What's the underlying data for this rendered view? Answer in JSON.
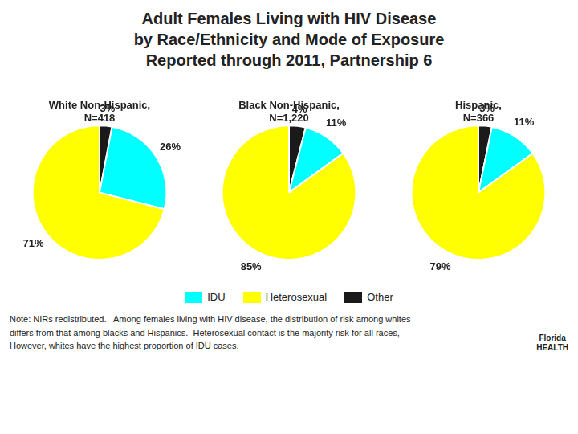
{
  "title": "Adult Females Living with HIV Disease\nby Race/Ethnicity and Mode of Exposure\nReported through 2011, Partnership 6",
  "annotations": [
    "Note: NIRs redistributed.   Among females living with HIV disease, the distribution of risk among whites\ndiffers from that among blacks and Hispanics.  Heterosexual contact is the majority risk for all races,\nHowever, whites have the highest proportion of IDU cases.",
    "Florida\nHEALTH"
  ],
  "legend_labels": [
    "IDU",
    "Heterosexual",
    "Other"
  ],
  "chart_data": [
    {
      "type": "pie",
      "subtitle": "White Non-Hispanic,\nN=418",
      "categories": [
        "Other",
        "IDU",
        "Heterosexual"
      ],
      "values": [
        3,
        26,
        71
      ],
      "value_labels": [
        "3%",
        "26%",
        "71%"
      ],
      "colors": [
        "#1A1A1A",
        "#00FFFF",
        "#FFFF00"
      ],
      "data_labels": true
    },
    {
      "type": "pie",
      "subtitle": "Black Non-Hispanic,\nN=1,220",
      "categories": [
        "Other",
        "IDU",
        "Heterosexual"
      ],
      "values": [
        4,
        11,
        85
      ],
      "value_labels": [
        "4%",
        "11%",
        "85%"
      ],
      "colors": [
        "#1A1A1A",
        "#00FFFF",
        "#FFFF00"
      ],
      "data_labels": true
    },
    {
      "type": "pie",
      "subtitle": "Hispanic,\nN=366",
      "categories": [
        "Other",
        "IDU",
        "Heterosexual"
      ],
      "values": [
        3,
        11,
        79
      ],
      "value_labels": [
        "3%",
        "11%",
        "79%"
      ],
      "colors": [
        "#1A1A1A",
        "#00FFFF",
        "#FFFF00"
      ],
      "data_labels": true
    }
  ]
}
